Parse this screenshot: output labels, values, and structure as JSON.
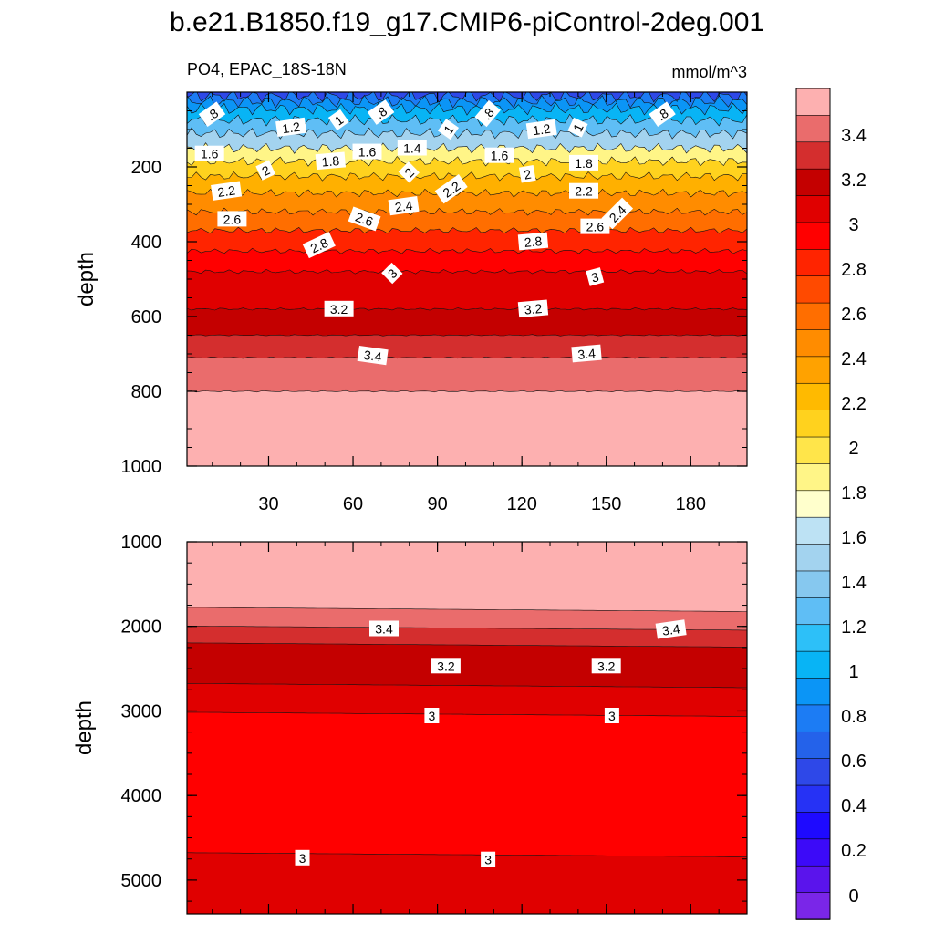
{
  "title": "b.e21.B1850.f19_g17.CMIP6-piControl-2deg.001",
  "chart_data": [
    {
      "type": "heatmap",
      "panel": "upper",
      "variable_label": "PO4, EPAC_18S-18N",
      "units_label": "mmol/m^3",
      "ylabel": "depth",
      "xlabel": "",
      "x_range": [
        1,
        200
      ],
      "y_range": [
        0,
        1000
      ],
      "y_inverted": true,
      "x_ticks": [
        30,
        60,
        90,
        120,
        150,
        180
      ],
      "y_ticks": [
        200,
        400,
        600,
        800,
        1000
      ],
      "contour_levels": [
        0.8,
        1,
        1.2,
        1.4,
        1.6,
        1.8,
        2,
        2.2,
        2.4,
        2.6,
        2.8,
        3,
        3.2,
        3.4
      ],
      "bands": [
        {
          "min": 0.4,
          "max": 0.6,
          "top": 0,
          "bottom": 10
        },
        {
          "min": 0.6,
          "max": 0.8,
          "top": 10,
          "bottom": 25
        },
        {
          "min": 0.8,
          "max": 1.0,
          "top": 25,
          "bottom": 45
        },
        {
          "min": 1.0,
          "max": 1.2,
          "top": 45,
          "bottom": 75
        },
        {
          "min": 1.2,
          "max": 1.4,
          "top": 75,
          "bottom": 110
        },
        {
          "min": 1.4,
          "max": 1.6,
          "top": 110,
          "bottom": 150
        },
        {
          "min": 1.6,
          "max": 1.8,
          "top": 150,
          "bottom": 185
        },
        {
          "min": 1.8,
          "max": 2.0,
          "top": 185,
          "bottom": 225
        },
        {
          "min": 2.0,
          "max": 2.2,
          "top": 225,
          "bottom": 270
        },
        {
          "min": 2.2,
          "max": 2.4,
          "top": 270,
          "bottom": 320
        },
        {
          "min": 2.4,
          "max": 2.6,
          "top": 320,
          "bottom": 370
        },
        {
          "min": 2.6,
          "max": 2.8,
          "top": 370,
          "bottom": 425
        },
        {
          "min": 2.8,
          "max": 3.0,
          "top": 425,
          "bottom": 480
        },
        {
          "min": 3.0,
          "max": 3.2,
          "top": 480,
          "bottom": 580
        },
        {
          "min": 3.2,
          "max": 3.4,
          "top": 580,
          "bottom": 650
        },
        {
          "min": 3.4,
          "max": 3.6,
          "top": 650,
          "bottom": 710
        },
        {
          "min": 3.6,
          "max": 3.8,
          "top": 710,
          "bottom": 800
        },
        {
          "min": 3.8,
          "max": 4.0,
          "top": 800,
          "bottom": 1000
        }
      ],
      "contour_labels": [
        {
          "text": ".8",
          "x": 10,
          "y": 60,
          "angle": -35
        },
        {
          "text": "1.2",
          "x": 38,
          "y": 95,
          "angle": -8
        },
        {
          "text": "1",
          "x": 55,
          "y": 75,
          "angle": -35
        },
        {
          "text": ".8",
          "x": 70,
          "y": 55,
          "angle": -35
        },
        {
          "text": "1",
          "x": 94,
          "y": 100,
          "angle": -55
        },
        {
          "text": ".8",
          "x": 108,
          "y": 58,
          "angle": -50
        },
        {
          "text": "1.2",
          "x": 127,
          "y": 100,
          "angle": -8
        },
        {
          "text": "1",
          "x": 140,
          "y": 95,
          "angle": -65
        },
        {
          "text": ".8",
          "x": 170,
          "y": 60,
          "angle": -35
        },
        {
          "text": "1.6",
          "x": 9,
          "y": 165,
          "angle": 0
        },
        {
          "text": "1.6",
          "x": 65,
          "y": 160,
          "angle": 0
        },
        {
          "text": "1.4",
          "x": 81,
          "y": 150,
          "angle": 0
        },
        {
          "text": "1.6",
          "x": 112,
          "y": 170,
          "angle": 0
        },
        {
          "text": "1.8",
          "x": 52,
          "y": 185,
          "angle": -5
        },
        {
          "text": "1.8",
          "x": 142,
          "y": 190,
          "angle": 0
        },
        {
          "text": "2",
          "x": 29,
          "y": 210,
          "angle": -25
        },
        {
          "text": "2",
          "x": 80,
          "y": 215,
          "angle": -45
        },
        {
          "text": "2",
          "x": 122,
          "y": 220,
          "angle": -10
        },
        {
          "text": "2.2",
          "x": 15,
          "y": 265,
          "angle": -8
        },
        {
          "text": "2.2",
          "x": 95,
          "y": 260,
          "angle": -35
        },
        {
          "text": "2.2",
          "x": 142,
          "y": 265,
          "angle": 0
        },
        {
          "text": "2.4",
          "x": 78,
          "y": 305,
          "angle": -8
        },
        {
          "text": "2.4",
          "x": 154,
          "y": 325,
          "angle": -45
        },
        {
          "text": "2.6",
          "x": 17,
          "y": 340,
          "angle": 0
        },
        {
          "text": "2.6",
          "x": 64,
          "y": 340,
          "angle": 20
        },
        {
          "text": "2.6",
          "x": 146,
          "y": 360,
          "angle": 0
        },
        {
          "text": "2.8",
          "x": 48,
          "y": 410,
          "angle": -25
        },
        {
          "text": "2.8",
          "x": 124,
          "y": 400,
          "angle": -5
        },
        {
          "text": "3",
          "x": 74,
          "y": 485,
          "angle": -45
        },
        {
          "text": "3",
          "x": 146,
          "y": 495,
          "angle": -15
        },
        {
          "text": "3.2",
          "x": 55,
          "y": 580,
          "angle": 0
        },
        {
          "text": "3.2",
          "x": 124,
          "y": 580,
          "angle": -5
        },
        {
          "text": "3.4",
          "x": 67,
          "y": 705,
          "angle": 8
        },
        {
          "text": "3.4",
          "x": 143,
          "y": 700,
          "angle": -5
        }
      ]
    },
    {
      "type": "heatmap",
      "panel": "lower",
      "ylabel": "depth",
      "xlabel": "",
      "x_range": [
        1,
        200
      ],
      "y_range": [
        1000,
        5400
      ],
      "y_inverted": true,
      "y_ticks": [
        1000,
        2000,
        3000,
        4000,
        5000
      ],
      "bands": [
        {
          "min": 3.8,
          "max": 4.0,
          "top": 1000,
          "bottom": 1800
        },
        {
          "min": 3.6,
          "max": 3.8,
          "top": 1800,
          "bottom": 2020
        },
        {
          "min": 3.4,
          "max": 3.6,
          "top": 2020,
          "bottom": 2220
        },
        {
          "min": 3.2,
          "max": 3.4,
          "top": 2220,
          "bottom": 2700
        },
        {
          "min": 3.0,
          "max": 3.2,
          "top": 2700,
          "bottom": 3040
        },
        {
          "min": 2.8,
          "max": 3.0,
          "top": 3040,
          "bottom": 4700
        },
        {
          "min": 3.0,
          "max": 3.2,
          "top": 4700,
          "bottom": 5400
        }
      ],
      "contour_labels": [
        {
          "text": "3.4",
          "x": 71,
          "y": 2030,
          "angle": 0
        },
        {
          "text": "3.4",
          "x": 173,
          "y": 2040,
          "angle": -8
        },
        {
          "text": "3.2",
          "x": 93,
          "y": 2470,
          "angle": 0
        },
        {
          "text": "3.2",
          "x": 150,
          "y": 2470,
          "angle": 0
        },
        {
          "text": "3",
          "x": 88,
          "y": 3060,
          "angle": 0
        },
        {
          "text": "3",
          "x": 152,
          "y": 3060,
          "angle": 0
        },
        {
          "text": "3",
          "x": 42,
          "y": 4740,
          "angle": 0
        },
        {
          "text": "3",
          "x": 108,
          "y": 4760,
          "angle": 0
        }
      ]
    }
  ],
  "colorbar": {
    "labels": [
      "3.4",
      "3.2",
      "3",
      "2.8",
      "2.6",
      "2.4",
      "2.2",
      "2",
      "1.8",
      "1.6",
      "1.4",
      "1.2",
      "1",
      "0.8",
      "0.6",
      "0.4",
      "0.2",
      "0"
    ],
    "colors": [
      "#fdb0b0",
      "#ea6c6c",
      "#d42e2e",
      "#c40000",
      "#e00000",
      "#ff0000",
      "#ff2400",
      "#ff4a00",
      "#ff6e00",
      "#ff8c00",
      "#ffa200",
      "#ffba00",
      "#ffd21e",
      "#ffe54a",
      "#fff587",
      "#ffffcc",
      "#bde2f4",
      "#a3d3ef",
      "#86c8ef",
      "#5fbef5",
      "#2dc0f8",
      "#08b4f5",
      "#0b95f6",
      "#1c7cf4",
      "#2462ea",
      "#2e48e8",
      "#2632f5",
      "#1e0aff",
      "#3c0af8",
      "#5a14ec",
      "#7a26e8"
    ]
  }
}
